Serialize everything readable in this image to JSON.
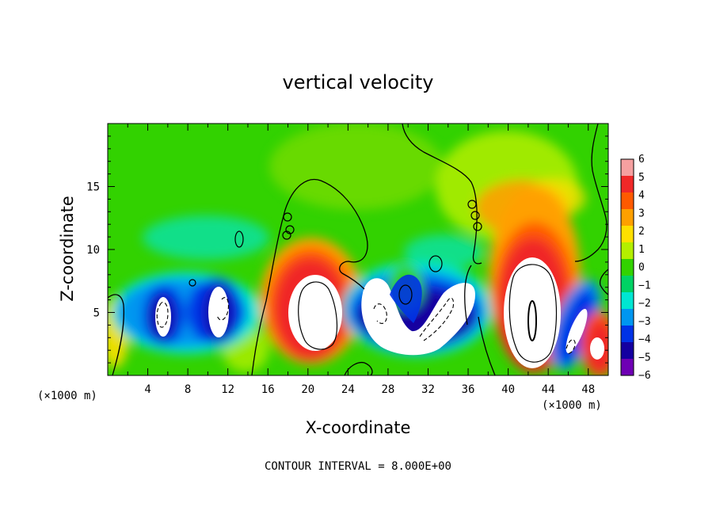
{
  "chart_data": {
    "type": "heatmap",
    "title": "vertical velocity",
    "xlabel": "X-coordinate",
    "ylabel": "Z-coordinate",
    "x_unit_left": "(×1000 m)",
    "x_unit_right": "(×1000 m)",
    "xlim": [
      0,
      50
    ],
    "ylim": [
      0,
      20
    ],
    "x_ticks": [
      4,
      8,
      12,
      16,
      20,
      24,
      28,
      32,
      36,
      40,
      44,
      48
    ],
    "y_ticks": [
      5,
      10,
      15
    ],
    "colorbar": {
      "levels": [
        6,
        5,
        4,
        3,
        2,
        1,
        0,
        -1,
        -2,
        -3,
        -4,
        -5,
        -6
      ],
      "labels": [
        "6",
        "5",
        "4",
        "3",
        "2",
        "1",
        "0",
        "−1",
        "−2",
        "−3",
        "−4",
        "−5",
        "−6"
      ],
      "colors": [
        "#f5a0a0",
        "#f02828",
        "#ff5a00",
        "#ffa000",
        "#ffe000",
        "#b4ef00",
        "#32d200",
        "#00d264",
        "#00e6d2",
        "#0096f0",
        "#0032e6",
        "#1400a0",
        "#6e00b4"
      ]
    },
    "features": [
      {
        "kind": "updraft",
        "x": 5.5,
        "z": 4.8,
        "rx": 1.2,
        "rz": 2.2,
        "peak": -7
      },
      {
        "kind": "updraft",
        "x": 11,
        "z": 4.8,
        "rx": 1.4,
        "rz": 2.6,
        "peak": -7
      },
      {
        "kind": "updraft",
        "x": 20,
        "z": 5.3,
        "rx": 3.0,
        "rz": 4.2,
        "peak": 9
      },
      {
        "kind": "updraft",
        "x": 28,
        "z": 4.2,
        "rx": 2.6,
        "rz": 2.2,
        "peak": -8
      },
      {
        "kind": "updraft",
        "x": 33,
        "z": 4.5,
        "rx": 2.4,
        "rz": 2.8,
        "peak": -8
      },
      {
        "kind": "updraft",
        "x": 42,
        "z": 5.5,
        "rx": 3.4,
        "rz": 5.5,
        "peak": 10
      },
      {
        "kind": "updraft",
        "x": 46.5,
        "z": 3.5,
        "rx": 1.2,
        "rz": 2.5,
        "peak": -7
      },
      {
        "kind": "updraft",
        "x": 49,
        "z": 2.6,
        "rx": 1.0,
        "rz": 1.6,
        "peak": 8
      }
    ],
    "contour_interval_text": "CONTOUR INTERVAL = 8.000E+00"
  }
}
